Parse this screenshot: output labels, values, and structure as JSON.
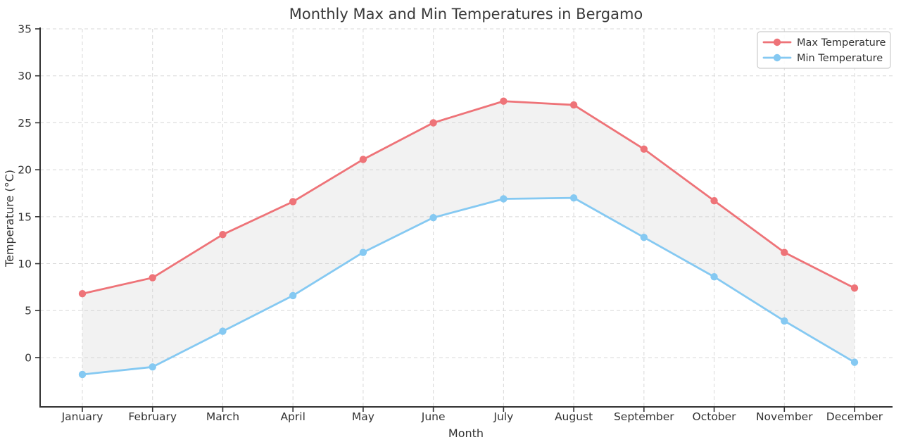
{
  "figure": {
    "title": "Monthly Max and Min Temperatures in Bergamo",
    "xlabel": "Month",
    "ylabel": "Temperature (°C)"
  },
  "chart_data": {
    "type": "line",
    "title": "Monthly Max and Min Temperatures in Bergamo",
    "xlabel": "Month",
    "ylabel": "Temperature (°C)",
    "categories": [
      "January",
      "February",
      "March",
      "April",
      "May",
      "June",
      "July",
      "August",
      "September",
      "October",
      "November",
      "December"
    ],
    "series": [
      {
        "name": "Max Temperature",
        "color": "#ee7378",
        "marker": "circle",
        "values": [
          6.8,
          8.5,
          13.1,
          16.6,
          21.1,
          25.0,
          27.3,
          26.9,
          22.2,
          16.7,
          11.2,
          7.4
        ]
      },
      {
        "name": "Min Temperature",
        "color": "#85c9f2",
        "marker": "circle",
        "values": [
          -1.8,
          -1.0,
          2.8,
          6.6,
          11.2,
          14.9,
          16.9,
          17.0,
          12.8,
          8.6,
          3.9,
          -0.5
        ]
      }
    ],
    "yticks": [
      0,
      5,
      10,
      15,
      20,
      25,
      30,
      35
    ],
    "ylim": [
      -5.25,
      35
    ],
    "grid": true,
    "grid_style": "dashed",
    "legend_position": "upper right",
    "legend_entries": [
      "Max Temperature",
      "Min Temperature"
    ],
    "fill_between": {
      "color": "#cfcfcf",
      "opacity": 0.28
    }
  },
  "style_colors": {
    "grid": "#d8d8d8",
    "spine": "#333333",
    "background": "#ffffff",
    "legend_border": "#cccccc",
    "legend_background": "#ffffff"
  }
}
